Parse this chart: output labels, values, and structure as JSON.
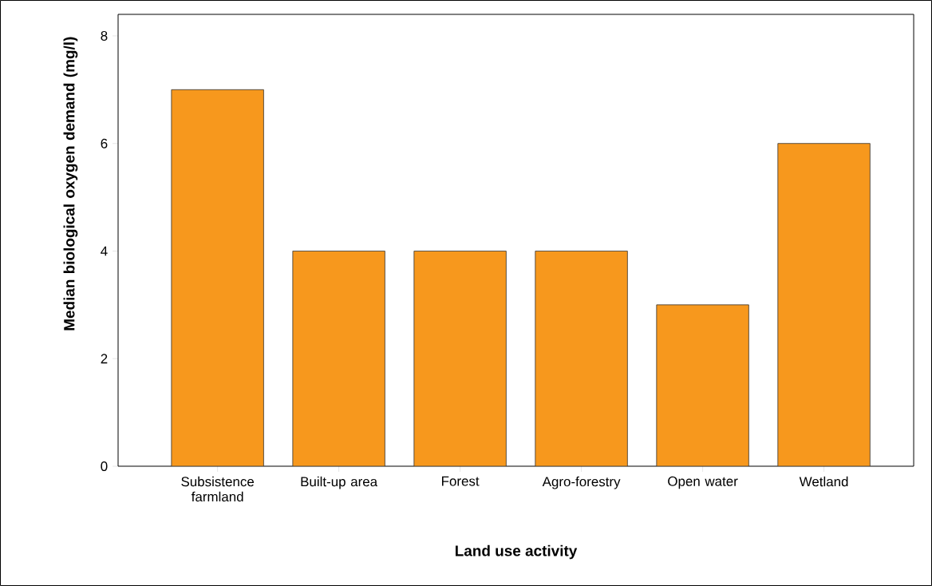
{
  "chart_data": {
    "type": "bar",
    "xlabel": "Land use activity",
    "ylabel": "Median biological oxygen demand (mg/l)",
    "categories": [
      "Subsistence farmland",
      "Built-up area",
      "Forest",
      "Agro-forestry",
      "Open water",
      "Wetland"
    ],
    "values": [
      7,
      4,
      4,
      4,
      3,
      6
    ],
    "color": "#f7981d",
    "ylim": [
      0,
      8.4
    ],
    "yticks": [
      0,
      2,
      4,
      6,
      8
    ]
  }
}
